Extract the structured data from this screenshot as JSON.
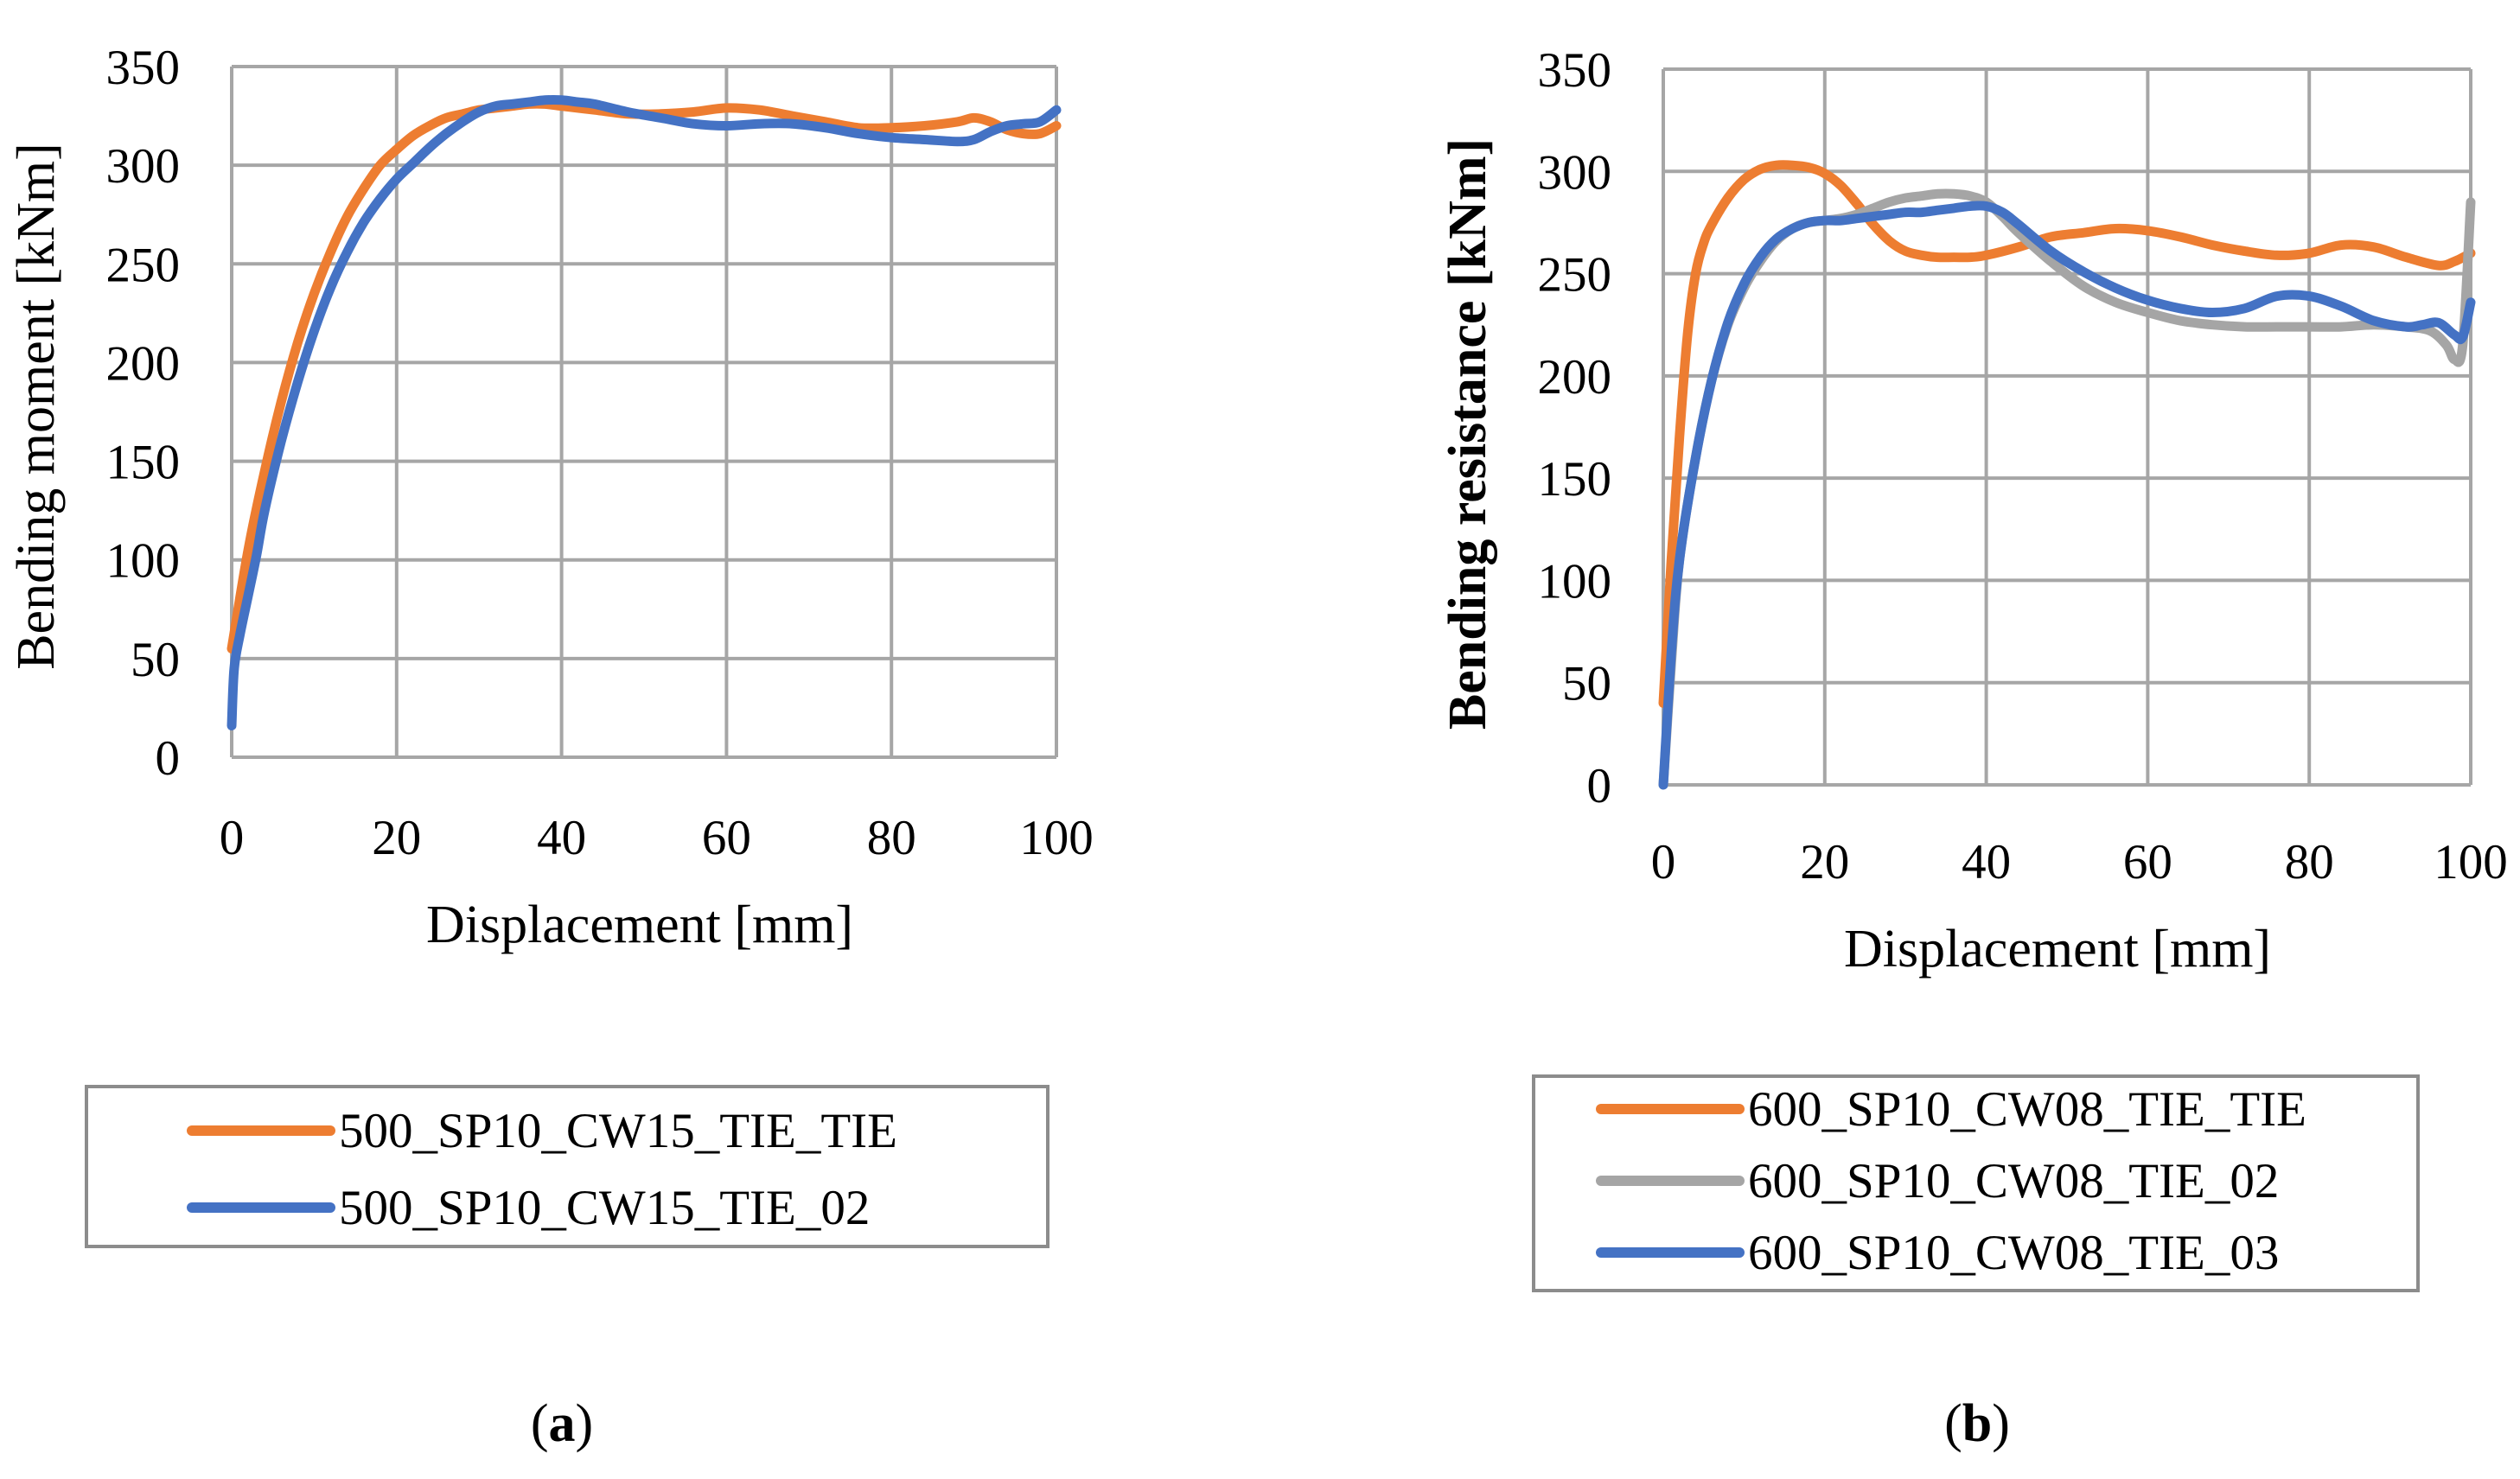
{
  "chart_data": [
    {
      "type": "line",
      "panel_label": "(a)",
      "title": "",
      "xlabel": "Displacement [mm]",
      "ylabel": "Bending moment [kNm]",
      "xlim": [
        0,
        100
      ],
      "ylim": [
        0,
        350
      ],
      "xticks": [
        "0",
        "20",
        "40",
        "60",
        "80",
        "100"
      ],
      "yticks": [
        "0",
        "50",
        "100",
        "150",
        "200",
        "250",
        "300",
        "350"
      ],
      "grid": true,
      "legend_position": "bottom",
      "series": [
        {
          "name": "500_SP10_CW15_TIE_TIE",
          "color": "#ED7D31",
          "x": [
            0,
            2,
            4,
            6,
            8,
            10,
            12,
            14,
            16,
            18,
            20,
            22,
            24,
            26,
            28,
            30,
            32,
            34,
            36,
            38,
            40,
            44,
            48,
            52,
            56,
            60,
            64,
            68,
            72,
            76,
            80,
            84,
            88,
            90,
            92,
            94,
            96,
            98,
            100
          ],
          "y": [
            55,
            105,
            145,
            180,
            210,
            235,
            256,
            274,
            288,
            300,
            308,
            315,
            320,
            324,
            326,
            328,
            329,
            330,
            331,
            331,
            330,
            328,
            326,
            326,
            327,
            329,
            328,
            325,
            322,
            319,
            319,
            320,
            322,
            324,
            322,
            318,
            316,
            316,
            320
          ]
        },
        {
          "name": "500_SP10_CW15_TIE_02",
          "color": "#4472C4",
          "x": [
            0,
            0.3,
            1,
            2,
            3,
            4,
            6,
            8,
            10,
            12,
            14,
            16,
            18,
            20,
            22,
            24,
            26,
            28,
            30,
            32,
            34,
            36,
            38,
            40,
            42,
            44,
            48,
            52,
            56,
            60,
            64,
            68,
            72,
            76,
            80,
            84,
            88,
            90,
            92,
            94,
            96,
            98,
            100
          ],
          "y": [
            16,
            45,
            62,
            82,
            102,
            125,
            160,
            190,
            216,
            238,
            256,
            271,
            283,
            293,
            301,
            309,
            316,
            322,
            327,
            330,
            331,
            332,
            333,
            333,
            332,
            331,
            327,
            324,
            321,
            320,
            321,
            321,
            319,
            316,
            314,
            313,
            312,
            313,
            317,
            320,
            321,
            322,
            328
          ]
        }
      ]
    },
    {
      "type": "line",
      "panel_label": "(b)",
      "title": "",
      "xlabel": "Displacement [mm]",
      "ylabel": "Bending resistance [kNm]",
      "xlim": [
        0,
        100
      ],
      "ylim": [
        0,
        350
      ],
      "xticks": [
        "0",
        "20",
        "40",
        "60",
        "80",
        "100"
      ],
      "yticks": [
        "0",
        "50",
        "100",
        "150",
        "200",
        "250",
        "300",
        "350"
      ],
      "grid": true,
      "legend_position": "bottom",
      "series": [
        {
          "name": "600_SP10_CW08_TIE_TIE",
          "color": "#ED7D31",
          "x": [
            0,
            1,
            2,
            3,
            4,
            5,
            6,
            8,
            10,
            12,
            14,
            16,
            18,
            20,
            22,
            24,
            26,
            28,
            30,
            32,
            34,
            36,
            38,
            40,
            44,
            48,
            52,
            56,
            60,
            64,
            68,
            72,
            76,
            80,
            84,
            88,
            92,
            96,
            98,
            100
          ],
          "y": [
            40,
            110,
            170,
            220,
            250,
            265,
            274,
            287,
            296,
            301,
            303,
            303,
            302,
            299,
            293,
            284,
            274,
            266,
            261,
            259,
            258,
            258,
            258,
            259,
            263,
            268,
            270,
            272,
            271,
            268,
            264,
            261,
            259,
            260,
            264,
            263,
            258,
            254,
            256,
            260
          ]
        },
        {
          "name": "600_SP10_CW08_TIE_02",
          "color": "#A5A5A5",
          "x": [
            0,
            1,
            2,
            4,
            6,
            8,
            10,
            12,
            14,
            16,
            18,
            20,
            22,
            24,
            26,
            28,
            30,
            32,
            34,
            36,
            38,
            40,
            42,
            44,
            48,
            52,
            56,
            60,
            64,
            68,
            72,
            76,
            80,
            84,
            88,
            92,
            95,
            97,
            98,
            99,
            100
          ],
          "y": [
            0,
            60,
            110,
            160,
            198,
            225,
            243,
            256,
            266,
            272,
            275,
            276,
            277,
            279,
            282,
            285,
            287,
            288,
            289,
            289,
            288,
            285,
            278,
            270,
            256,
            244,
            236,
            231,
            227,
            225,
            224,
            224,
            224,
            224,
            225,
            224,
            222,
            215,
            208,
            215,
            285
          ]
        },
        {
          "name": "600_SP10_CW08_TIE_03",
          "color": "#4472C4",
          "x": [
            0,
            1,
            2,
            4,
            6,
            8,
            10,
            12,
            14,
            16,
            18,
            20,
            22,
            24,
            26,
            28,
            30,
            32,
            34,
            36,
            38,
            40,
            42,
            44,
            48,
            52,
            56,
            60,
            64,
            68,
            72,
            76,
            80,
            84,
            88,
            92,
            94,
            96,
            98,
            99,
            100
          ],
          "y": [
            0,
            65,
            110,
            160,
            198,
            226,
            245,
            258,
            267,
            272,
            275,
            276,
            276,
            277,
            278,
            279,
            280,
            280,
            281,
            282,
            283,
            283,
            280,
            274,
            261,
            251,
            243,
            237,
            233,
            231,
            233,
            239,
            239,
            234,
            227,
            224,
            225,
            226,
            220,
            219,
            236
          ]
        }
      ]
    }
  ]
}
